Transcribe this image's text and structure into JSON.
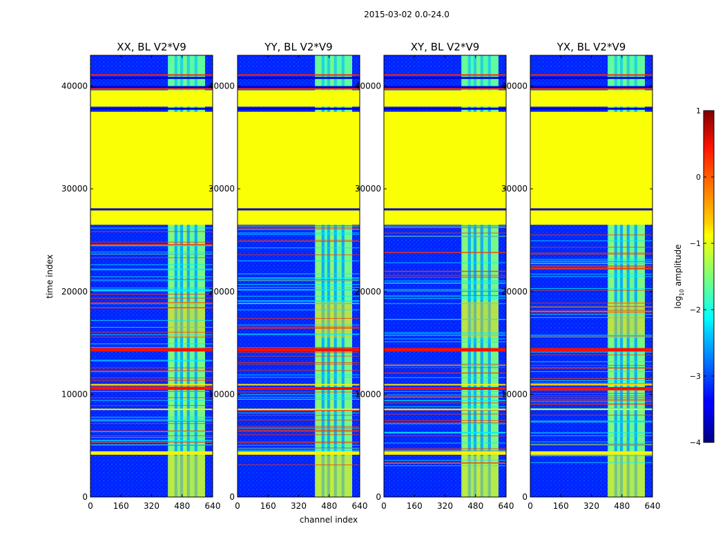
{
  "figure_title": "2015-03-02 0.0-24.0",
  "chart_data": {
    "type": "heatmap",
    "title": "2015-03-02 0.0-24.0",
    "xlabel": "channel index",
    "ylabel": "time index",
    "xlim": [
      0,
      640
    ],
    "ylim": [
      0,
      43000
    ],
    "xticks": [
      0,
      160,
      320,
      480,
      640
    ],
    "yticks": [
      0,
      10000,
      20000,
      30000,
      40000
    ],
    "panels": [
      {
        "title": "XX, BL V2*V9",
        "polarization": "XX",
        "baseline": "V2*V9"
      },
      {
        "title": "YY, BL V2*V9",
        "polarization": "YY",
        "baseline": "V2*V9"
      },
      {
        "title": "XY, BL V2*V9",
        "polarization": "XY",
        "baseline": "V2*V9"
      },
      {
        "title": "YX, BL V2*V9",
        "polarization": "YX",
        "baseline": "V2*V9"
      }
    ],
    "colorbar": {
      "label_main": "log",
      "label_sub": "10",
      "label_tail": " amplitude",
      "range": [
        -4,
        1
      ],
      "ticks": [
        "1",
        "0",
        "−1",
        "−2",
        "−3",
        "−4"
      ],
      "colormap": "jet"
    },
    "features": {
      "rfi_channel_band": [
        405,
        600
      ],
      "flagged_time_blocks": [
        [
          26500,
          37500
        ],
        [
          38000,
          39600
        ]
      ],
      "flag_value": -0.9,
      "high_amplitude_rows": [
        14300,
        10550,
        41100,
        39800
      ],
      "background_value": -3.2
    }
  }
}
